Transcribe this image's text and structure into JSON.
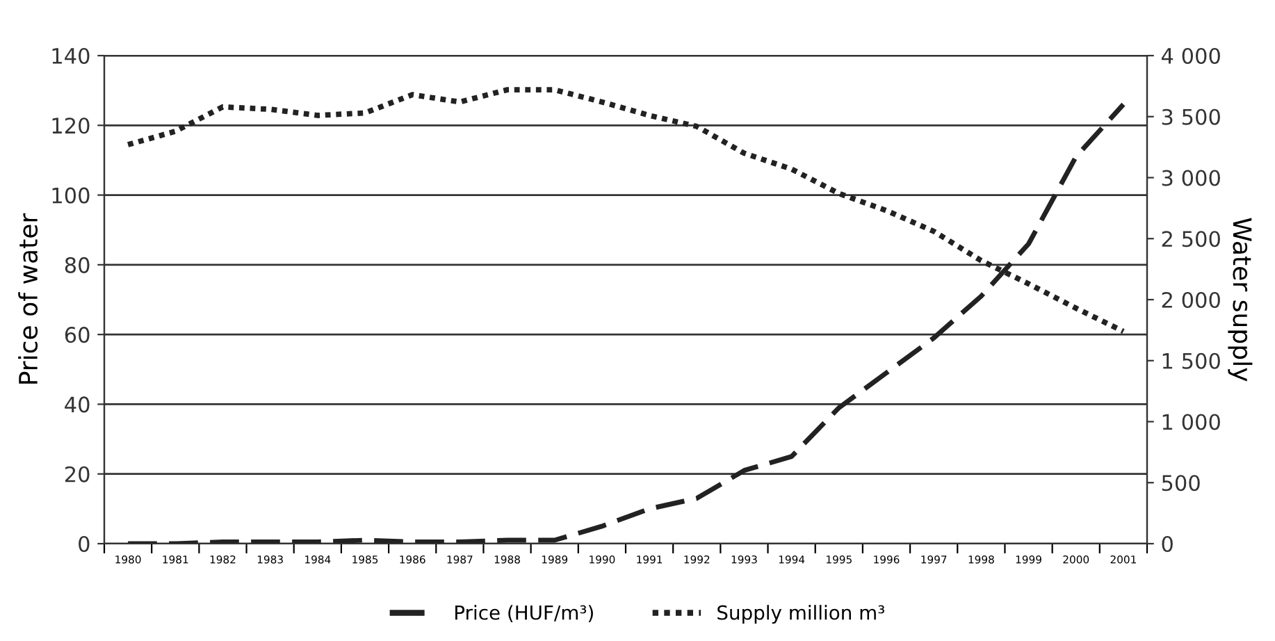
{
  "chart_data": {
    "type": "line",
    "categories": [
      "1980",
      "1981",
      "1982",
      "1983",
      "1984",
      "1985",
      "1986",
      "1987",
      "1988",
      "1989",
      "1990",
      "1991",
      "1992",
      "1993",
      "1994",
      "1995",
      "1996",
      "1997",
      "1998",
      "1999",
      "2000",
      "2001"
    ],
    "series": [
      {
        "name": "Price (HUF/m³)",
        "color": "#222222",
        "line_style": "dashed",
        "values": [
          0,
          0,
          0.5,
          0.5,
          0.5,
          1,
          0.5,
          0.5,
          1,
          1,
          5,
          10,
          13,
          21,
          25,
          39,
          49,
          59,
          71,
          86,
          111,
          126
        ]
      },
      {
        "name": "Supply million m³",
        "color": "#222222",
        "line_style": "dotted",
        "axis": "y2",
        "values": [
          3270,
          3380,
          3580,
          3560,
          3510,
          3530,
          3680,
          3620,
          3720,
          3720,
          3620,
          3510,
          3420,
          3200,
          3070,
          2870,
          2730,
          2560,
          2320,
          2130,
          1930,
          1740
        ]
      }
    ],
    "ylabel": "Price of water",
    "y2label": "Water supply",
    "ylim": [
      0,
      140
    ],
    "yticks": [
      0,
      20,
      40,
      60,
      80,
      100,
      120,
      140
    ],
    "y2lim": [
      0,
      4000
    ],
    "y2ticks": [
      0,
      {
        "value": 500,
        "label": "500"
      },
      {
        "value": 1000,
        "label": "1 000"
      },
      {
        "value": 1500,
        "label": "1 500"
      },
      {
        "value": 2000,
        "label": "2 000"
      },
      {
        "value": 2500,
        "label": "2 500"
      },
      {
        "value": 3000,
        "label": "3 000"
      },
      {
        "value": 3500,
        "label": "3 500"
      },
      {
        "value": 4000,
        "label": "4 000"
      }
    ],
    "grid": "y",
    "legend": "bottom",
    "marker": "none"
  }
}
